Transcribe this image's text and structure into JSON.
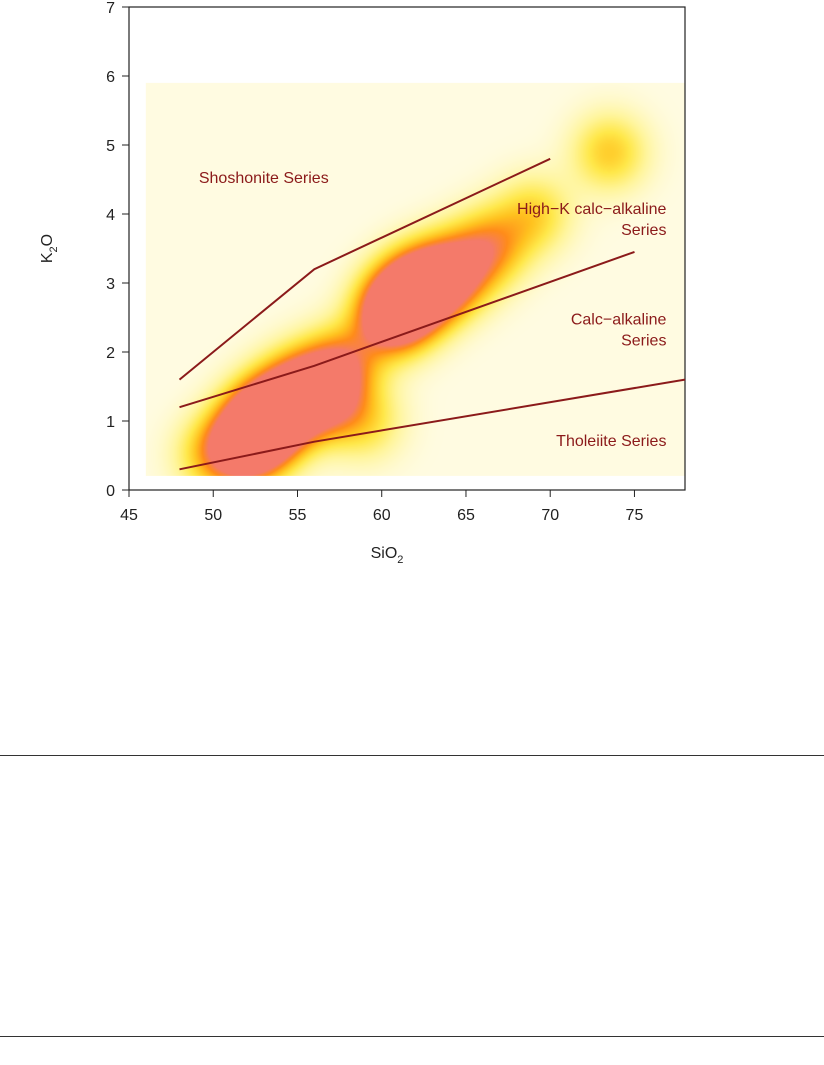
{
  "chart_data": {
    "type": "line",
    "subtype": "classification diagram with density background",
    "xlabel": {
      "main": "SiO",
      "sub": "2"
    },
    "ylabel": {
      "main": "K",
      "sub": "2",
      "tail": "O"
    },
    "xlim": [
      45,
      78
    ],
    "ylim": [
      0,
      7
    ],
    "xticks": [
      45,
      50,
      55,
      60,
      65,
      70,
      75
    ],
    "yticks": [
      0,
      1,
      2,
      3,
      4,
      5,
      6,
      7
    ],
    "grid": false,
    "line_color": "#8b1a1a",
    "series": [
      {
        "points": [
          [
            48,
            1.6
          ],
          [
            56,
            3.2
          ],
          [
            70,
            4.8
          ]
        ]
      },
      {
        "points": [
          [
            48,
            1.2
          ],
          [
            56,
            1.8
          ],
          [
            75,
            3.45
          ]
        ]
      },
      {
        "points": [
          [
            48,
            0.3
          ],
          [
            56,
            0.7
          ],
          [
            78,
            1.6
          ]
        ]
      }
    ],
    "annotations": [
      {
        "lines": [
          "Shoshonite Series"
        ],
        "x": 53,
        "y": 4.45,
        "align": "middle"
      },
      {
        "lines": [
          "High−K calc−alkaline",
          "Series"
        ],
        "x": 76.9,
        "y": 4.0,
        "align": "end"
      },
      {
        "lines": [
          "Calc−alkaline",
          "Series"
        ],
        "x": 76.9,
        "y": 2.4,
        "align": "end"
      },
      {
        "lines": [
          "Tholeiite Series"
        ],
        "x": 76.9,
        "y": 0.64,
        "align": "end"
      }
    ],
    "density": {
      "colormap": [
        "#ffffff",
        "#fffbe0",
        "#fff59a",
        "#ffe84a",
        "#ffc21f",
        "#ff8c1a",
        "#f47a6a"
      ],
      "extent_x": [
        46,
        78
      ],
      "extent_y": [
        0.2,
        5.9
      ],
      "hotspots": [
        {
          "x": 52.0,
          "y": 0.65,
          "v": 0.95
        },
        {
          "x": 52.8,
          "y": 0.95,
          "v": 1.0
        },
        {
          "x": 53.8,
          "y": 1.15,
          "v": 0.95
        },
        {
          "x": 55.2,
          "y": 1.5,
          "v": 0.75
        },
        {
          "x": 57.5,
          "y": 1.8,
          "v": 0.7
        },
        {
          "x": 60.5,
          "y": 2.5,
          "v": 0.95
        },
        {
          "x": 61.5,
          "y": 2.8,
          "v": 1.0
        },
        {
          "x": 62.8,
          "y": 3.0,
          "v": 0.95
        },
        {
          "x": 64.5,
          "y": 3.2,
          "v": 0.7
        },
        {
          "x": 66.5,
          "y": 3.55,
          "v": 0.55
        },
        {
          "x": 69.0,
          "y": 4.0,
          "v": 0.4
        },
        {
          "x": 73.5,
          "y": 4.9,
          "v": 0.45
        },
        {
          "x": 59.0,
          "y": 1.0,
          "v": 0.35
        },
        {
          "x": 56.5,
          "y": 1.3,
          "v": 0.6
        },
        {
          "x": 50.0,
          "y": 0.5,
          "v": 0.45
        }
      ]
    }
  }
}
